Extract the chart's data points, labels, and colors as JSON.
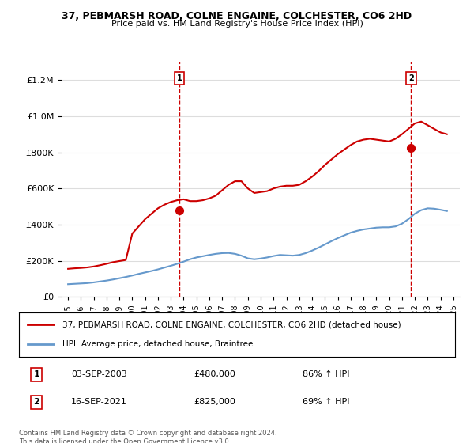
{
  "title": "37, PEBMARSH ROAD, COLNE ENGAINE, COLCHESTER, CO6 2HD",
  "subtitle": "Price paid vs. HM Land Registry's House Price Index (HPI)",
  "red_label": "37, PEBMARSH ROAD, COLNE ENGAINE, COLCHESTER, CO6 2HD (detached house)",
  "blue_label": "HPI: Average price, detached house, Braintree",
  "footnote": "Contains HM Land Registry data © Crown copyright and database right 2024.\nThis data is licensed under the Open Government Licence v3.0.",
  "transaction1_label": "1",
  "transaction1_date": "03-SEP-2003",
  "transaction1_price": "£480,000",
  "transaction1_hpi": "86% ↑ HPI",
  "transaction2_label": "2",
  "transaction2_date": "16-SEP-2021",
  "transaction2_price": "£825,000",
  "transaction2_hpi": "69% ↑ HPI",
  "sale1_x": 2003.67,
  "sale1_y": 480000,
  "sale2_x": 2021.71,
  "sale2_y": 825000,
  "vline1_x": 2003.67,
  "vline2_x": 2021.71,
  "ylim": [
    0,
    1300000
  ],
  "xlim_left": 1994.5,
  "xlim_right": 2025.5,
  "red_color": "#cc0000",
  "blue_color": "#6699cc",
  "dot_color": "#cc0000",
  "vline_color": "#cc0000",
  "background_color": "#ffffff",
  "grid_color": "#dddddd",
  "years": [
    1995,
    1996,
    1997,
    1998,
    1999,
    2000,
    2001,
    2002,
    2003,
    2004,
    2005,
    2006,
    2007,
    2008,
    2009,
    2010,
    2011,
    2012,
    2013,
    2014,
    2015,
    2016,
    2017,
    2018,
    2019,
    2020,
    2021,
    2022,
    2023,
    2024,
    2025
  ],
  "red_x": [
    1995.0,
    1995.5,
    1996.0,
    1996.5,
    1997.0,
    1997.5,
    1998.0,
    1998.5,
    1999.0,
    1999.5,
    2000.0,
    2000.5,
    2001.0,
    2001.5,
    2002.0,
    2002.5,
    2003.0,
    2003.5,
    2004.0,
    2004.5,
    2005.0,
    2005.5,
    2006.0,
    2006.5,
    2007.0,
    2007.5,
    2008.0,
    2008.5,
    2009.0,
    2009.5,
    2010.0,
    2010.5,
    2011.0,
    2011.5,
    2012.0,
    2012.5,
    2013.0,
    2013.5,
    2014.0,
    2014.5,
    2015.0,
    2015.5,
    2016.0,
    2016.5,
    2017.0,
    2017.5,
    2018.0,
    2018.5,
    2019.0,
    2019.5,
    2020.0,
    2020.5,
    2021.0,
    2021.5,
    2022.0,
    2022.5,
    2023.0,
    2023.5,
    2024.0,
    2024.5
  ],
  "red_y": [
    155000,
    158000,
    160000,
    163000,
    168000,
    175000,
    183000,
    192000,
    198000,
    204000,
    350000,
    390000,
    430000,
    460000,
    490000,
    510000,
    525000,
    535000,
    540000,
    530000,
    530000,
    535000,
    545000,
    560000,
    590000,
    620000,
    640000,
    640000,
    600000,
    575000,
    580000,
    585000,
    600000,
    610000,
    615000,
    615000,
    620000,
    640000,
    665000,
    695000,
    730000,
    760000,
    790000,
    815000,
    840000,
    860000,
    870000,
    875000,
    870000,
    865000,
    860000,
    875000,
    900000,
    930000,
    960000,
    970000,
    950000,
    930000,
    910000,
    900000
  ],
  "blue_x": [
    1995.0,
    1995.5,
    1996.0,
    1996.5,
    1997.0,
    1997.5,
    1998.0,
    1998.5,
    1999.0,
    1999.5,
    2000.0,
    2000.5,
    2001.0,
    2001.5,
    2002.0,
    2002.5,
    2003.0,
    2003.5,
    2004.0,
    2004.5,
    2005.0,
    2005.5,
    2006.0,
    2006.5,
    2007.0,
    2007.5,
    2008.0,
    2008.5,
    2009.0,
    2009.5,
    2010.0,
    2010.5,
    2011.0,
    2011.5,
    2012.0,
    2012.5,
    2013.0,
    2013.5,
    2014.0,
    2014.5,
    2015.0,
    2015.5,
    2016.0,
    2016.5,
    2017.0,
    2017.5,
    2018.0,
    2018.5,
    2019.0,
    2019.5,
    2020.0,
    2020.5,
    2021.0,
    2021.5,
    2022.0,
    2022.5,
    2023.0,
    2023.5,
    2024.0,
    2024.5
  ],
  "blue_y": [
    70000,
    72000,
    74000,
    76000,
    80000,
    85000,
    90000,
    96000,
    103000,
    110000,
    118000,
    127000,
    135000,
    143000,
    152000,
    162000,
    172000,
    183000,
    195000,
    208000,
    218000,
    225000,
    232000,
    238000,
    242000,
    243000,
    238000,
    228000,
    213000,
    208000,
    212000,
    218000,
    226000,
    232000,
    230000,
    228000,
    232000,
    242000,
    256000,
    272000,
    290000,
    308000,
    325000,
    340000,
    355000,
    365000,
    373000,
    378000,
    383000,
    385000,
    385000,
    390000,
    405000,
    430000,
    460000,
    480000,
    490000,
    488000,
    482000,
    475000
  ]
}
